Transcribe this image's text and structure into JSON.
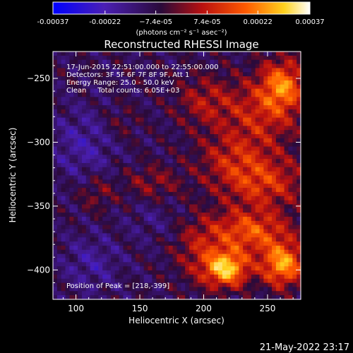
{
  "chart_data": {
    "type": "heatmap",
    "title": "Reconstructed RHESSI Image",
    "xlabel": "Heliocentric X (arcsec)",
    "ylabel": "Heliocentric Y (arcsec)",
    "xlim": [
      82,
      276
    ],
    "ylim": [
      -423,
      -229
    ],
    "xticks": [
      100,
      150,
      200,
      250
    ],
    "yticks": [
      -250,
      -300,
      -350,
      -400
    ],
    "colorbar": {
      "min": -0.00037,
      "max": 0.00037,
      "tick_values": [
        -0.00037,
        -0.00022,
        -7.4e-05,
        7.4e-05,
        0.00022,
        0.00037
      ],
      "tick_labels": [
        "-0.00037",
        "-0.00022",
        "−7.4e-05",
        "7.4e-05",
        "0.00022",
        "0.00037"
      ],
      "unit_label": "(photons cm⁻² s⁻¹ asec⁻²)",
      "colors": [
        "#0000ff",
        "#4b1fb4",
        "#2a0a3a",
        "#b81010",
        "#ff5a00",
        "#ffd21e",
        "#ffffff"
      ]
    },
    "annotations": [
      "17-Jun-2015 22:51:00.000 to 22:55:00.000",
      "Detectors: 3F 5F 6F 7F 8F 9F, Att 1",
      "Energy Range: 25.0 - 50.0 keV",
      "Clean     Total counts: 6.05E+03"
    ],
    "peak_label": "Position of Peak = [218,-399]",
    "peak": [
      218,
      -399
    ],
    "sources": [
      {
        "x": 218,
        "y": -399,
        "amp": 0.00037,
        "sx": 12,
        "sy": 10
      },
      {
        "x": 262,
        "y": -396,
        "amp": 0.00033,
        "sx": 12,
        "sy": 12
      },
      {
        "x": 236,
        "y": -370,
        "amp": 0.00024,
        "sx": 22,
        "sy": 12
      },
      {
        "x": 246,
        "y": -332,
        "amp": 0.00019,
        "sx": 24,
        "sy": 14
      },
      {
        "x": 262,
        "y": -255,
        "amp": 0.00026,
        "sx": 12,
        "sy": 14
      },
      {
        "x": 244,
        "y": -278,
        "amp": 0.00016,
        "sx": 22,
        "sy": 20
      },
      {
        "x": 200,
        "y": -268,
        "amp": 0.00012,
        "sx": 16,
        "sy": 14
      },
      {
        "x": 222,
        "y": -312,
        "amp": 0.00012,
        "sx": 20,
        "sy": 14
      },
      {
        "x": 160,
        "y": -332,
        "amp": 0.0001,
        "sx": 16,
        "sy": 10
      },
      {
        "x": 116,
        "y": -340,
        "amp": 9e-05,
        "sx": 10,
        "sy": 10
      },
      {
        "x": 196,
        "y": -385,
        "amp": 0.00012,
        "sx": 14,
        "sy": 18
      },
      {
        "x": 135,
        "y": -285,
        "amp": 6e-05,
        "sx": 10,
        "sy": 10
      }
    ],
    "lows": [
      {
        "x": 106,
        "y": -302,
        "amp": 0.0001,
        "sx": 18,
        "sy": 20
      },
      {
        "x": 112,
        "y": -395,
        "amp": 9e-05,
        "sx": 16,
        "sy": 16
      },
      {
        "x": 160,
        "y": -360,
        "amp": 5e-05,
        "sx": 14,
        "sy": 12
      }
    ]
  },
  "footer": {
    "timestamp": "21-May-2022 23:17"
  }
}
